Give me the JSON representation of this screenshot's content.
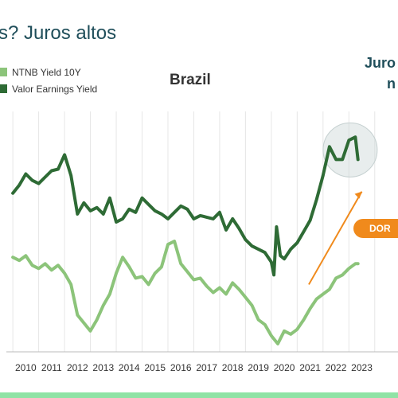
{
  "slide": {
    "title": "s? Juros altos",
    "side_heading": "Juro",
    "side_heading_2": "n",
    "badge": "DOR",
    "colors": {
      "accent": "#f08a1c",
      "title": "#1f4e5a",
      "bar": "#8fe3a5"
    }
  },
  "chart_data": {
    "type": "line",
    "title": "Brazil",
    "xlabel": "",
    "ylabel": "",
    "xlim": [
      2009.75,
      2024.9
    ],
    "ylim": [
      5,
      20
    ],
    "x_ticks": [
      "2010",
      "2011",
      "2012",
      "2013",
      "2014",
      "2015",
      "2016",
      "2017",
      "2018",
      "2019",
      "2020",
      "2021",
      "2022",
      "2023"
    ],
    "legend": "top-left",
    "grid": true,
    "series": [
      {
        "name": "NTNB Yield 10Y",
        "color": "#8cc47a",
        "x": [
          2010.0,
          2010.25,
          2010.5,
          2010.75,
          2011.0,
          2011.25,
          2011.5,
          2011.75,
          2012.0,
          2012.25,
          2012.5,
          2012.75,
          2013.0,
          2013.25,
          2013.5,
          2013.75,
          2014.0,
          2014.25,
          2014.5,
          2014.75,
          2015.0,
          2015.25,
          2015.5,
          2015.75,
          2016.0,
          2016.25,
          2016.5,
          2016.75,
          2017.0,
          2017.25,
          2017.5,
          2017.75,
          2018.0,
          2018.25,
          2018.5,
          2018.75,
          2019.0,
          2019.25,
          2019.5,
          2019.75,
          2020.0,
          2020.25,
          2020.5,
          2020.75,
          2021.0,
          2021.25,
          2021.5,
          2021.75,
          2022.0,
          2022.25,
          2022.5,
          2022.75,
          2023.0,
          2023.25,
          2023.35
        ],
        "values": [
          10.9,
          10.7,
          11.0,
          10.4,
          10.2,
          10.5,
          10.1,
          10.4,
          9.9,
          9.2,
          7.3,
          6.8,
          6.3,
          7.0,
          7.9,
          8.6,
          9.9,
          10.9,
          10.3,
          9.6,
          9.7,
          9.2,
          9.9,
          10.3,
          11.7,
          11.9,
          10.5,
          10.0,
          9.5,
          9.6,
          9.1,
          8.7,
          9.0,
          8.6,
          9.3,
          8.9,
          8.4,
          7.9,
          7.0,
          6.7,
          6.0,
          5.5,
          6.3,
          6.1,
          6.4,
          7.0,
          7.7,
          8.3,
          8.6,
          8.9,
          9.6,
          9.8,
          10.2,
          10.5,
          10.5
        ]
      },
      {
        "name": "Valor Earnings Yield",
        "color": "#2e6b35",
        "x": [
          2010.0,
          2010.25,
          2010.5,
          2010.75,
          2011.0,
          2011.25,
          2011.5,
          2011.75,
          2012.0,
          2012.25,
          2012.5,
          2012.75,
          2013.0,
          2013.25,
          2013.5,
          2013.75,
          2014.0,
          2014.25,
          2014.5,
          2014.75,
          2015.0,
          2015.25,
          2015.5,
          2015.75,
          2016.0,
          2016.25,
          2016.5,
          2016.75,
          2017.0,
          2017.25,
          2017.5,
          2017.75,
          2018.0,
          2018.25,
          2018.5,
          2018.75,
          2019.0,
          2019.25,
          2019.5,
          2019.75,
          2020.0,
          2020.1,
          2020.2,
          2020.35,
          2020.5,
          2020.75,
          2021.0,
          2021.25,
          2021.5,
          2021.75,
          2022.0,
          2022.25,
          2022.5,
          2022.75,
          2023.0,
          2023.25,
          2023.35
        ],
        "values": [
          14.9,
          15.4,
          16.1,
          15.7,
          15.5,
          15.9,
          16.3,
          16.4,
          17.3,
          16.0,
          13.6,
          14.3,
          13.8,
          14.0,
          13.6,
          14.6,
          13.1,
          13.3,
          13.9,
          13.7,
          14.6,
          14.2,
          13.8,
          13.6,
          13.3,
          13.7,
          14.1,
          13.9,
          13.3,
          13.5,
          13.4,
          13.3,
          13.7,
          12.6,
          13.3,
          12.7,
          12.0,
          11.6,
          11.4,
          11.2,
          10.6,
          9.8,
          12.8,
          11.0,
          10.8,
          11.4,
          11.8,
          12.5,
          13.2,
          14.5,
          16.0,
          17.8,
          17.0,
          17.0,
          18.2,
          18.4,
          17.0
        ]
      }
    ]
  }
}
